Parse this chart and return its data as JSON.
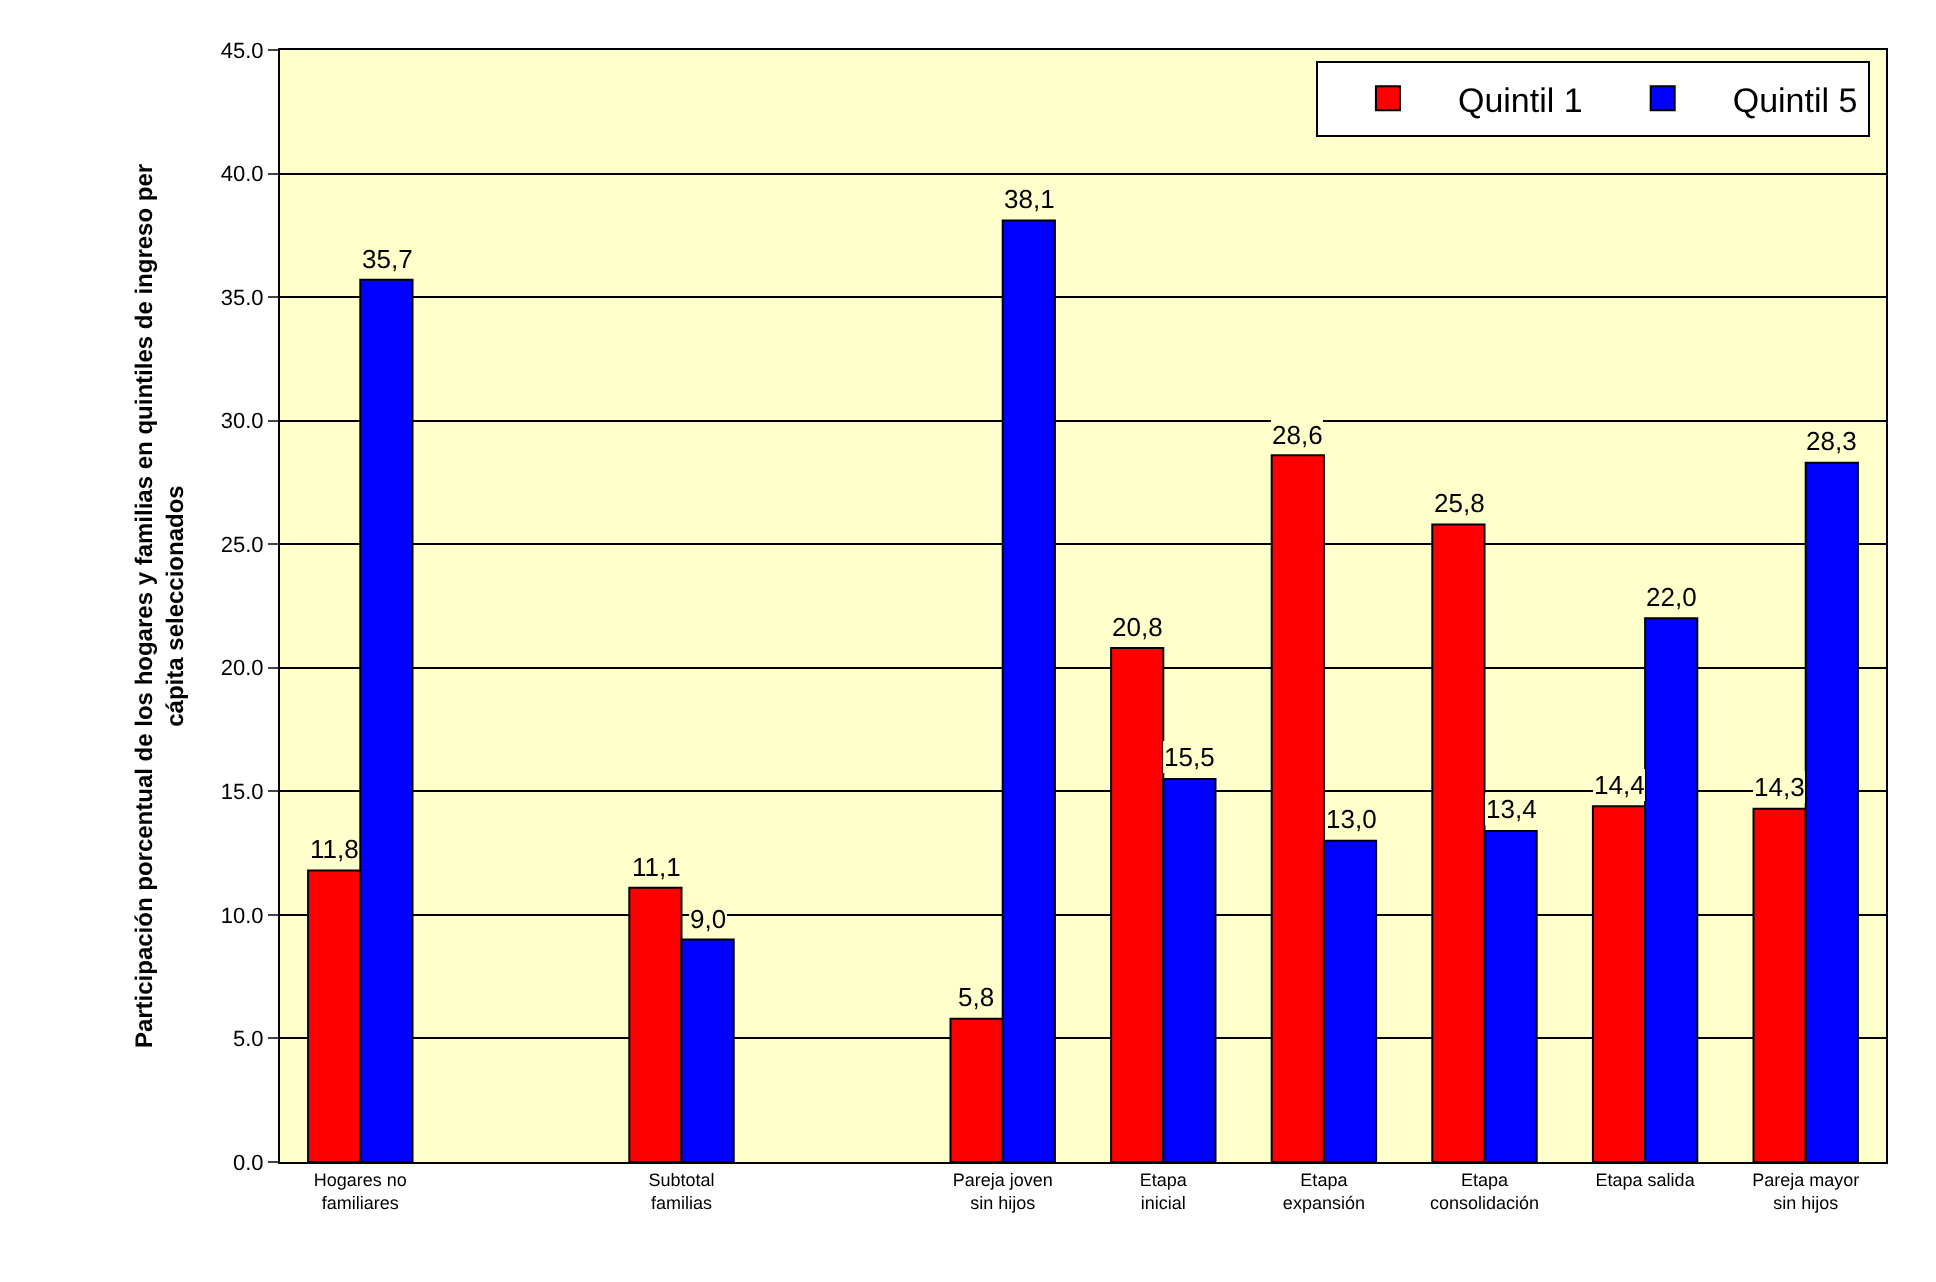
{
  "chart_data": {
    "type": "bar",
    "ylabel": "Participación porcentual de los hogares y familias en quintiles de ingreso per cápita seleccionados",
    "categories": [
      "Hogares no familiares",
      null,
      "Subtotal familias",
      null,
      "Pareja joven sin hijos",
      "Etapa inicial",
      "Etapa expansión",
      "Etapa consolidación",
      "Etapa salida",
      "Pareja mayor sin hijos"
    ],
    "series": [
      {
        "name": "Quintil 1",
        "color": "#ff0000",
        "values": [
          11.8,
          null,
          11.1,
          null,
          5.8,
          20.8,
          28.6,
          25.8,
          14.4,
          14.3
        ],
        "value_labels": [
          "11,8",
          null,
          "11,1",
          null,
          "5,8",
          "20,8",
          "28,6",
          "25,8",
          "14,4",
          "14,3"
        ]
      },
      {
        "name": "Quintil 5",
        "color": "#0000ff",
        "values": [
          35.7,
          null,
          9.0,
          null,
          38.1,
          15.5,
          13.0,
          13.4,
          22.0,
          28.3
        ],
        "value_labels": [
          "35,7",
          null,
          "9,0",
          null,
          "38,1",
          "15,5",
          "13,0",
          "13,4",
          "22,0",
          "28,3"
        ]
      }
    ],
    "ylim": [
      0,
      45
    ],
    "yticks": [
      {
        "value": 0,
        "label": "0.0"
      },
      {
        "value": 5,
        "label": "5.0"
      },
      {
        "value": 10,
        "label": "10.0"
      },
      {
        "value": 15,
        "label": "15.0"
      },
      {
        "value": 20,
        "label": "20.0"
      },
      {
        "value": 25,
        "label": "25.0"
      },
      {
        "value": 30,
        "label": "30.0"
      },
      {
        "value": 35,
        "label": "35.0"
      },
      {
        "value": 40,
        "label": "40.0"
      },
      {
        "value": 45,
        "label": "45.0"
      }
    ],
    "grid": "y",
    "legend": "top right"
  }
}
